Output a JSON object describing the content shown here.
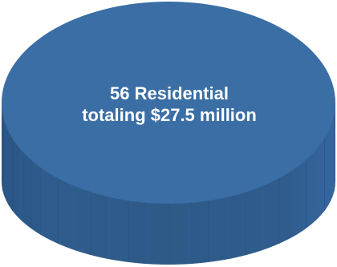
{
  "chart_data": {
    "type": "pie",
    "style": "3d-cylinder",
    "slices": [
      {
        "label_line_1": "56 Residential",
        "label_line_2": "totaling $27.5 million",
        "value": 100
      }
    ]
  },
  "colors": {
    "top": "#3a6ea5",
    "side": "#2e5a88",
    "side_dark": "#244a73",
    "side_light": "#3566a0",
    "label": "#ffffff"
  }
}
